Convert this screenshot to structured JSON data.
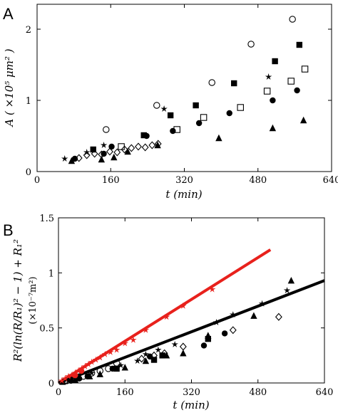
{
  "chart_data": [
    {
      "panel": "A",
      "type": "scatter",
      "xlabel": "t (min)",
      "ylabel": "A ( ×10⁵ μm² )",
      "xlim": [
        0,
        640
      ],
      "ylim": [
        0,
        2.35
      ],
      "xticks": [
        0,
        160,
        320,
        480,
        640
      ],
      "yticks": [
        0,
        1,
        2
      ],
      "series": [
        {
          "marker": "open-circle",
          "x": [
            150,
            260,
            380,
            465,
            555
          ],
          "y": [
            0.59,
            0.93,
            1.25,
            1.79,
            2.14
          ]
        },
        {
          "marker": "filled-square",
          "x": [
            122,
            232,
            290,
            345,
            428,
            517,
            570
          ],
          "y": [
            0.31,
            0.51,
            0.79,
            0.93,
            1.24,
            1.55,
            1.78
          ]
        },
        {
          "marker": "open-square",
          "x": [
            183,
            304,
            362,
            442,
            500,
            552,
            582
          ],
          "y": [
            0.35,
            0.59,
            0.76,
            0.9,
            1.13,
            1.27,
            1.44
          ]
        },
        {
          "marker": "filled-circle",
          "x": [
            82,
            145,
            162,
            238,
            295,
            352,
            418,
            512,
            565
          ],
          "y": [
            0.18,
            0.25,
            0.35,
            0.5,
            0.57,
            0.68,
            0.82,
            1.0,
            1.14
          ]
        },
        {
          "marker": "star",
          "x": [
            60,
            108,
            145,
            276,
            503
          ],
          "y": [
            0.18,
            0.27,
            0.37,
            0.88,
            1.33
          ]
        },
        {
          "marker": "open-diamond",
          "x": [
            91,
            108,
            125,
            140,
            158,
            174,
            190,
            205,
            220,
            235,
            250,
            263
          ],
          "y": [
            0.19,
            0.23,
            0.25,
            0.24,
            0.28,
            0.27,
            0.31,
            0.33,
            0.35,
            0.34,
            0.37,
            0.39
          ]
        },
        {
          "marker": "filled-triangle",
          "x": [
            75,
            140,
            167,
            197,
            262,
            395,
            512,
            579
          ],
          "y": [
            0.15,
            0.17,
            0.2,
            0.28,
            0.37,
            0.47,
            0.61,
            0.72
          ]
        }
      ]
    },
    {
      "panel": "B",
      "type": "scatter",
      "xlabel": "t (min)",
      "ylabel": "R²(ln(R/R₁)² − 1) + R₁²",
      "ylabel_unit": "(×10⁻⁷m²)",
      "xlim": [
        0,
        640
      ],
      "ylim": [
        0,
        1.5
      ],
      "xticks": [
        0,
        160,
        320,
        480,
        640
      ],
      "yticks": [
        0,
        0.5,
        1,
        1.5
      ],
      "fit_lines": [
        {
          "color": "#e8211c",
          "x": [
            0,
            510
          ],
          "y": [
            0,
            1.21
          ]
        },
        {
          "color": "#000000",
          "x": [
            0,
            640
          ],
          "y": [
            0,
            0.93
          ]
        }
      ],
      "red_points": {
        "marker": "star",
        "x": [
          8,
          16,
          24,
          32,
          40,
          48,
          56,
          64,
          72,
          80,
          90,
          100,
          112,
          125,
          140,
          160,
          180,
          210,
          260,
          300,
          370
        ],
        "y": [
          0.02,
          0.04,
          0.06,
          0.07,
          0.09,
          0.11,
          0.13,
          0.15,
          0.17,
          0.19,
          0.21,
          0.23,
          0.26,
          0.28,
          0.3,
          0.36,
          0.39,
          0.48,
          0.6,
          0.7,
          0.85
        ]
      },
      "red_circles": {
        "x": [
          40,
          55
        ],
        "y": [
          0.07,
          0.11
        ]
      },
      "black_points": [
        {
          "marker": "open-circle",
          "x": [
            20,
            40,
            60,
            80,
            100,
            120,
            140
          ],
          "y": [
            0.02,
            0.04,
            0.06,
            0.09,
            0.11,
            0.13,
            0.18
          ]
        },
        {
          "marker": "filled-circle",
          "x": [
            30,
            50,
            70,
            130,
            220,
            350,
            400
          ],
          "y": [
            0.02,
            0.04,
            0.06,
            0.13,
            0.24,
            0.34,
            0.45
          ]
        },
        {
          "marker": "star",
          "x": [
            24,
            48,
            80,
            150,
            190,
            210,
            240,
            280,
            380,
            420,
            490,
            550
          ],
          "y": [
            0.02,
            0.06,
            0.09,
            0.16,
            0.2,
            0.26,
            0.3,
            0.35,
            0.55,
            0.62,
            0.72,
            0.84
          ]
        },
        {
          "marker": "filled-triangle",
          "x": [
            10,
            40,
            75,
            100,
            160,
            210,
            260,
            300,
            360,
            470,
            560
          ],
          "y": [
            0.01,
            0.03,
            0.06,
            0.08,
            0.14,
            0.2,
            0.25,
            0.27,
            0.43,
            0.61,
            0.93
          ]
        },
        {
          "marker": "open-diamond",
          "x": [
            200,
            230,
            255,
            300,
            420,
            530
          ],
          "y": [
            0.22,
            0.25,
            0.27,
            0.33,
            0.48,
            0.6
          ]
        },
        {
          "marker": "filled-square",
          "x": [
            140,
            230,
            250,
            360
          ],
          "y": [
            0.13,
            0.21,
            0.25,
            0.4
          ]
        }
      ]
    }
  ],
  "panels": {
    "a": {
      "label": "A"
    },
    "b": {
      "label": "B"
    }
  }
}
